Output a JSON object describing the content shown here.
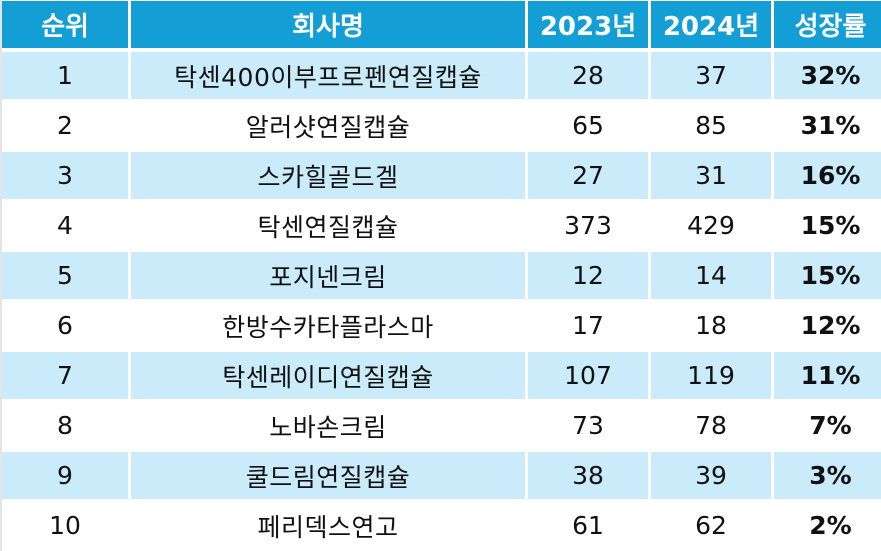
{
  "table": {
    "headers": [
      "순위",
      "회사명",
      "2023년",
      "2024년",
      "성장률"
    ],
    "rows": [
      {
        "rank": "1",
        "company": "탁센400이부프로펜연질캡슐",
        "y2023": "28",
        "y2024": "37",
        "growth": "32%"
      },
      {
        "rank": "2",
        "company": "알러샷연질캡슐",
        "y2023": "65",
        "y2024": "85",
        "growth": "31%"
      },
      {
        "rank": "3",
        "company": "스카힐골드겔",
        "y2023": "27",
        "y2024": "31",
        "growth": "16%"
      },
      {
        "rank": "4",
        "company": "탁센연질캡슐",
        "y2023": "373",
        "y2024": "429",
        "growth": "15%"
      },
      {
        "rank": "5",
        "company": "포지넨크림",
        "y2023": "12",
        "y2024": "14",
        "growth": "15%"
      },
      {
        "rank": "6",
        "company": "한방수카타플라스마",
        "y2023": "17",
        "y2024": "18",
        "growth": "12%"
      },
      {
        "rank": "7",
        "company": "탁센레이디연질캡슐",
        "y2023": "107",
        "y2024": "119",
        "growth": "11%"
      },
      {
        "rank": "8",
        "company": "노바손크림",
        "y2023": "73",
        "y2024": "78",
        "growth": "7%"
      },
      {
        "rank": "9",
        "company": "쿨드림연질캡슐",
        "y2023": "38",
        "y2024": "39",
        "growth": "3%"
      },
      {
        "rank": "10",
        "company": "페리덱스연고",
        "y2023": "61",
        "y2024": "62",
        "growth": "2%"
      }
    ]
  },
  "colors": {
    "header_bg": "#139fd5",
    "header_text": "#ffffff",
    "shaded_row_bg": "#c9ebfa",
    "plain_row_bg": "#ffffff",
    "text": "#111111"
  }
}
